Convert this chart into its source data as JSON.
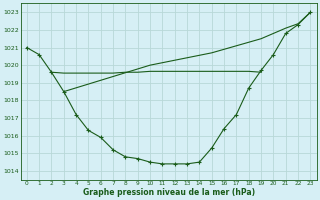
{
  "background_color": "#d6eff5",
  "grid_color": "#b8d8d8",
  "line_color": "#1a5c1a",
  "xlabel": "Graphe pression niveau de la mer (hPa)",
  "xlim": [
    -0.5,
    23.5
  ],
  "ylim": [
    1013.5,
    1023.5
  ],
  "yticks": [
    1014,
    1015,
    1016,
    1017,
    1018,
    1019,
    1020,
    1021,
    1022,
    1023
  ],
  "xticks": [
    0,
    1,
    2,
    3,
    4,
    5,
    6,
    7,
    8,
    9,
    10,
    11,
    12,
    13,
    14,
    15,
    16,
    17,
    18,
    19,
    20,
    21,
    22,
    23
  ],
  "curve1_x": [
    0,
    1,
    2,
    3,
    4,
    5,
    6,
    7,
    8,
    9,
    10,
    11,
    12,
    13,
    14,
    15,
    16,
    17,
    18,
    19,
    20,
    21,
    22,
    23
  ],
  "curve1_y": [
    1021.0,
    1020.6,
    1019.6,
    1018.5,
    1017.2,
    1016.3,
    1015.9,
    1015.2,
    1014.8,
    1014.7,
    1014.5,
    1014.4,
    1014.4,
    1014.4,
    1014.5,
    1015.3,
    1016.4,
    1017.2,
    1018.7,
    1019.7,
    1020.6,
    1021.8,
    1022.3,
    1023.0
  ],
  "curve2_x": [
    2,
    3,
    4,
    5,
    6,
    7,
    8,
    9,
    10,
    11,
    12,
    13,
    14,
    15,
    16,
    17,
    18,
    19
  ],
  "curve2_y": [
    1019.6,
    1019.55,
    1019.55,
    1019.55,
    1019.55,
    1019.55,
    1019.6,
    1019.6,
    1019.65,
    1019.65,
    1019.65,
    1019.65,
    1019.65,
    1019.65,
    1019.65,
    1019.65,
    1019.65,
    1019.6
  ],
  "curve3_x": [
    3,
    10,
    15,
    19,
    20,
    21,
    22,
    23
  ],
  "curve3_y": [
    1018.5,
    1020.0,
    1020.7,
    1021.5,
    1021.8,
    1022.1,
    1022.35,
    1023.0
  ]
}
